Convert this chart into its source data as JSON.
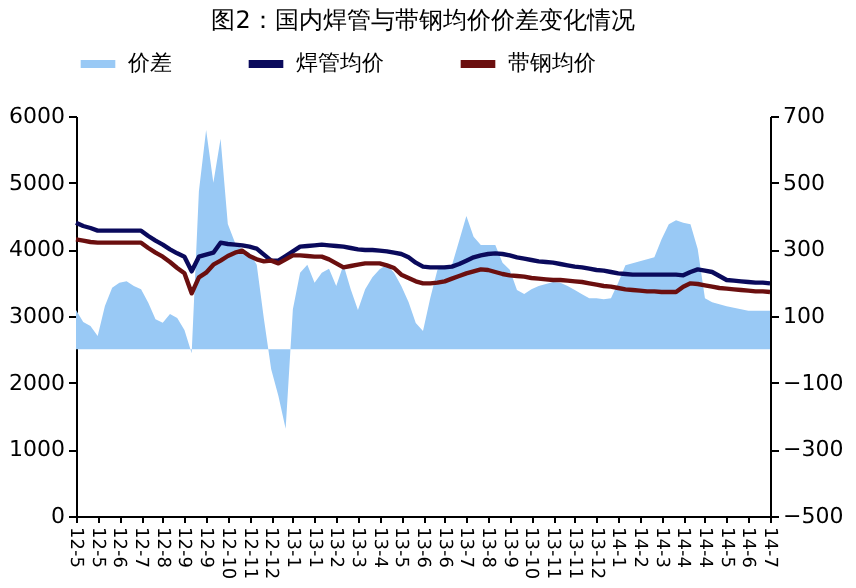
{
  "chart_data": {
    "type": "line",
    "title": "图2：国内焊管与带钢均价价差变化情况",
    "categories": [
      "12-5",
      null,
      null,
      "12-5",
      null,
      null,
      "12-6",
      null,
      null,
      "12-7",
      null,
      null,
      "12-8",
      null,
      null,
      "12-9",
      null,
      null,
      "12-9",
      null,
      null,
      "12-10",
      null,
      null,
      "12-11",
      null,
      null,
      "12-12",
      null,
      null,
      "13-1",
      null,
      null,
      "13-1",
      null,
      null,
      "13-2",
      null,
      null,
      "13-3",
      null,
      null,
      "13-4",
      null,
      null,
      "13-5",
      null,
      null,
      "13-6",
      null,
      null,
      "13-6",
      null,
      null,
      "13-7",
      null,
      null,
      "13-8",
      null,
      null,
      "13-9",
      null,
      null,
      "13-10",
      null,
      null,
      "13-11",
      null,
      null,
      "13-11",
      null,
      null,
      "13-12",
      null,
      null,
      "14-1",
      null,
      null,
      "14-2",
      null,
      null,
      "14-3",
      null,
      null,
      "14-4",
      null,
      null,
      "14-4",
      null,
      null,
      "14-5",
      null,
      null,
      "14-6",
      null,
      null,
      "14-7"
    ],
    "series": [
      {
        "name": "价差",
        "type": "area",
        "axis": "y2",
        "color": "#99c9f5",
        "values": [
          118,
          82,
          70,
          40,
          130,
          185,
          200,
          204,
          190,
          180,
          140,
          90,
          80,
          106,
          94,
          58,
          -12,
          474,
          658,
          500,
          632,
          376,
          320,
          300,
          290,
          254,
          90,
          -60,
          -140,
          -238,
          120,
          230,
          254,
          200,
          230,
          242,
          190,
          254,
          180,
          118,
          180,
          216,
          240,
          254,
          230,
          190,
          142,
          79,
          55,
          153,
          239,
          252,
          252,
          326,
          400,
          338,
          313,
          313,
          313,
          260,
          239,
          178,
          166,
          180,
          190,
          196,
          202,
          200,
          190,
          178,
          165,
          153,
          153,
          150,
          153,
          200,
          252,
          258,
          264,
          270,
          276,
          330,
          375,
          387,
          380,
          375,
          301,
          153,
          141,
          135,
          129,
          125,
          120,
          116,
          116,
          116,
          116
        ]
      },
      {
        "name": "焊管均价",
        "color": "#0a0a5c",
        "values": [
          4400,
          4350,
          4320,
          4280,
          4280,
          4280,
          4280,
          4280,
          4280,
          4280,
          4200,
          4130,
          4070,
          4000,
          3940,
          3890,
          3670,
          3890,
          3920,
          3950,
          4100,
          4080,
          4070,
          4060,
          4040,
          4010,
          3920,
          3830,
          3830,
          3900,
          3970,
          4040,
          4050,
          4060,
          4070,
          4060,
          4050,
          4040,
          4020,
          4000,
          3990,
          3990,
          3980,
          3970,
          3950,
          3930,
          3880,
          3800,
          3740,
          3730,
          3730,
          3730,
          3740,
          3780,
          3830,
          3880,
          3910,
          3930,
          3940,
          3930,
          3910,
          3880,
          3860,
          3840,
          3820,
          3810,
          3800,
          3780,
          3760,
          3740,
          3730,
          3710,
          3690,
          3680,
          3660,
          3640,
          3630,
          3620,
          3620,
          3620,
          3620,
          3620,
          3620,
          3620,
          3610,
          3660,
          3700,
          3680,
          3660,
          3600,
          3540,
          3530,
          3520,
          3510,
          3500,
          3500,
          3490
        ]
      },
      {
        "name": "带钢均价",
        "color": "#6b0f0f",
        "values": [
          4150,
          4130,
          4110,
          4100,
          4100,
          4100,
          4100,
          4100,
          4100,
          4100,
          4020,
          3950,
          3890,
          3810,
          3720,
          3640,
          3340,
          3580,
          3650,
          3770,
          3830,
          3900,
          3950,
          3980,
          3900,
          3850,
          3820,
          3830,
          3790,
          3850,
          3910,
          3910,
          3900,
          3890,
          3890,
          3850,
          3790,
          3730,
          3750,
          3770,
          3790,
          3790,
          3790,
          3760,
          3720,
          3620,
          3570,
          3520,
          3490,
          3490,
          3500,
          3520,
          3560,
          3600,
          3640,
          3670,
          3700,
          3690,
          3660,
          3630,
          3610,
          3600,
          3590,
          3570,
          3560,
          3550,
          3540,
          3540,
          3530,
          3520,
          3510,
          3490,
          3470,
          3450,
          3440,
          3420,
          3400,
          3390,
          3380,
          3370,
          3370,
          3360,
          3360,
          3360,
          3440,
          3490,
          3480,
          3460,
          3440,
          3420,
          3410,
          3400,
          3390,
          3380,
          3370,
          3370,
          3360
        ]
      }
    ],
    "ylim": [
      0,
      6000
    ],
    "yticks": [
      0,
      1000,
      2000,
      3000,
      4000,
      5000,
      6000
    ],
    "y2lim": [
      -500,
      700
    ],
    "y2ticks": [
      -500,
      -300,
      -100,
      100,
      300,
      500,
      700
    ],
    "legend": "top",
    "grid": false
  }
}
